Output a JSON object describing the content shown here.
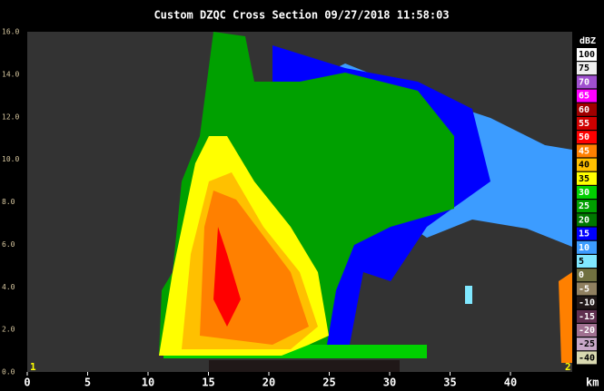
{
  "header": {
    "title": "Custom    DZQC Cross Section 09/27/2018 11:58:03"
  },
  "y_axis": {
    "labels": [
      "16.0",
      "14.0",
      "12.0",
      "10.0",
      "8.0",
      "6.0",
      "4.0",
      "2.0",
      "0.0"
    ]
  },
  "x_axis": {
    "labels": [
      "0",
      "5",
      "10",
      "15",
      "20",
      "25",
      "30",
      "35",
      "40"
    ],
    "unit": "km"
  },
  "markers": {
    "left": "1",
    "right": "2"
  },
  "colorbar": {
    "title": "dBZ",
    "entries": [
      {
        "label": "100",
        "color": "#ffffff"
      },
      {
        "label": "75",
        "color": "#f0f0f0"
      },
      {
        "label": "70",
        "color": "#a050d0"
      },
      {
        "label": "65",
        "color": "#ff00ff"
      },
      {
        "label": "60",
        "color": "#a00000"
      },
      {
        "label": "55",
        "color": "#d00000"
      },
      {
        "label": "50",
        "color": "#ff0000"
      },
      {
        "label": "45",
        "color": "#ff8000"
      },
      {
        "label": "40",
        "color": "#ffc000"
      },
      {
        "label": "35",
        "color": "#ffff00"
      },
      {
        "label": "30",
        "color": "#00d000"
      },
      {
        "label": "25",
        "color": "#00a000"
      },
      {
        "label": "20",
        "color": "#007800"
      },
      {
        "label": "15",
        "color": "#0000ff"
      },
      {
        "label": "10",
        "color": "#3c9cff"
      },
      {
        "label": "5",
        "color": "#80e8ff"
      },
      {
        "label": "0",
        "color": "#707040"
      },
      {
        "label": "-5",
        "color": "#908060"
      },
      {
        "label": "-10",
        "color": "#201818"
      },
      {
        "label": "-15",
        "color": "#603050"
      },
      {
        "label": "-20",
        "color": "#a07090"
      },
      {
        "label": "-25",
        "color": "#c8a8c8"
      },
      {
        "label": "-40",
        "color": "#d8d8b0"
      }
    ]
  }
}
